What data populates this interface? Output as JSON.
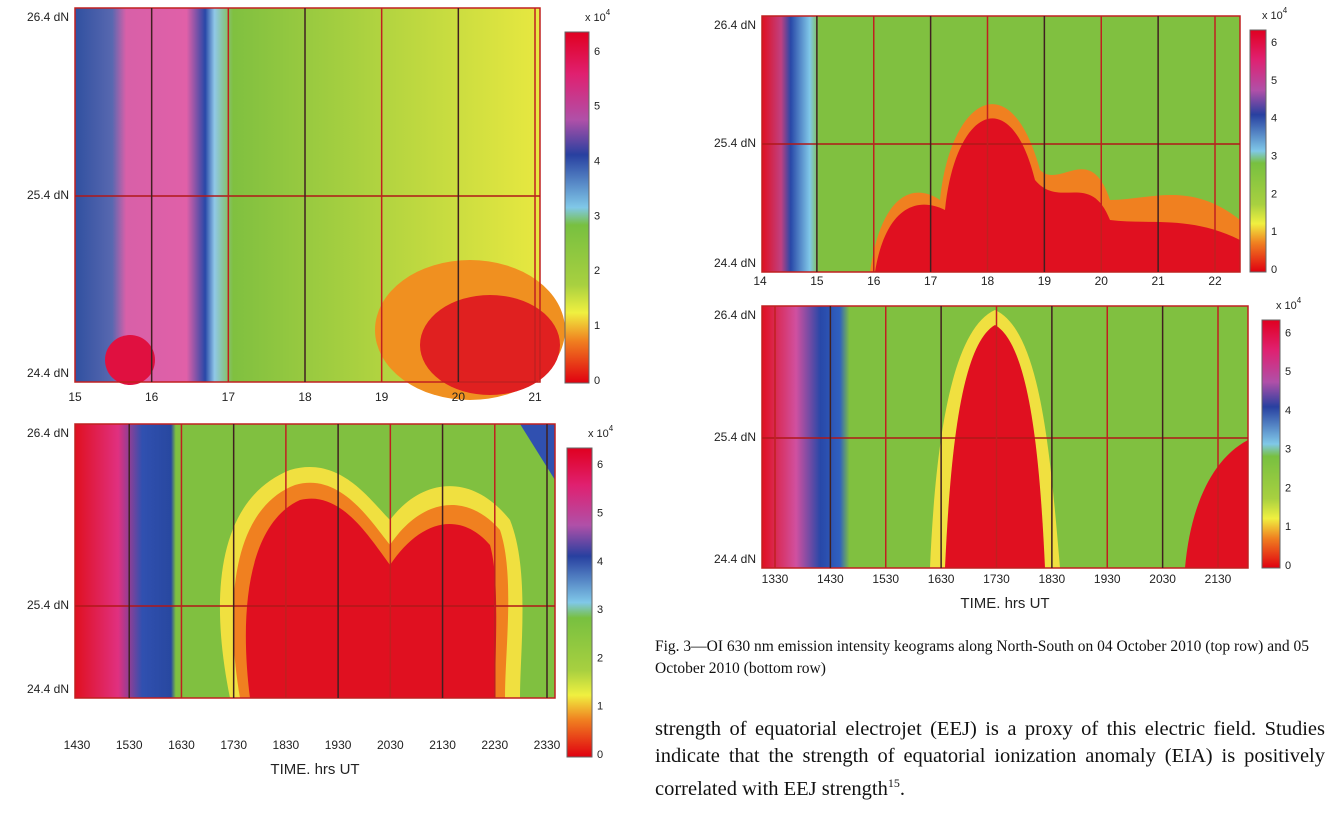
{
  "panels": [
    {
      "y_labels": [
        "26.4 dN",
        "25.4 dN",
        "24.4 dN"
      ],
      "x_ticks": [
        "15",
        "16",
        "17",
        "18",
        "19",
        "20",
        "21"
      ],
      "colorbar": {
        "exponent": "x 10",
        "power": "4",
        "ticks": [
          "6",
          "5",
          "4",
          "3",
          "2",
          "1",
          "0"
        ]
      }
    },
    {
      "y_labels": [
        "26.4 dN",
        "25.4 dN",
        "24.4 dN"
      ],
      "x_ticks": [
        "1430",
        "1530",
        "1630",
        "1730",
        "1830",
        "1930",
        "2030",
        "2130",
        "2230",
        "2330"
      ],
      "x_label": "TIME. hrs UT",
      "colorbar": {
        "exponent": "x 10",
        "power": "4",
        "ticks": [
          "6",
          "5",
          "4",
          "3",
          "2",
          "1",
          "0"
        ]
      }
    },
    {
      "y_labels": [
        "26.4 dN",
        "25.4 dN",
        "24.4 dN"
      ],
      "x_ticks": [
        "14",
        "15",
        "16",
        "17",
        "18",
        "19",
        "20",
        "21",
        "22"
      ],
      "colorbar": {
        "exponent": "x 10",
        "power": "4",
        "ticks": [
          "6",
          "5",
          "4",
          "3",
          "2",
          "1",
          "0"
        ]
      }
    },
    {
      "y_labels": [
        "26.4 dN",
        "25.4 dN",
        "24.4 dN"
      ],
      "x_ticks": [
        "1330",
        "1430",
        "1530",
        "1630",
        "1730",
        "1830",
        "1930",
        "2030",
        "2130"
      ],
      "x_label": "TIME. hrs UT",
      "colorbar": {
        "exponent": "x 10",
        "power": "4",
        "ticks": [
          "6",
          "5",
          "4",
          "3",
          "2",
          "1",
          "0"
        ]
      }
    }
  ],
  "caption": "Fig. 3—OI 630 nm emission intensity keograms along North-South on 04 October 2010 (top row) and 05 October 2010 (bottom row)",
  "paragraph": {
    "text": "strength of equatorial electrojet (EEJ) is a proxy of this electric field. Studies indicate that the strength of equatorial ionization anomaly (EIA) is positively correlated with EEJ strength",
    "ref": "15",
    "end": "."
  }
}
